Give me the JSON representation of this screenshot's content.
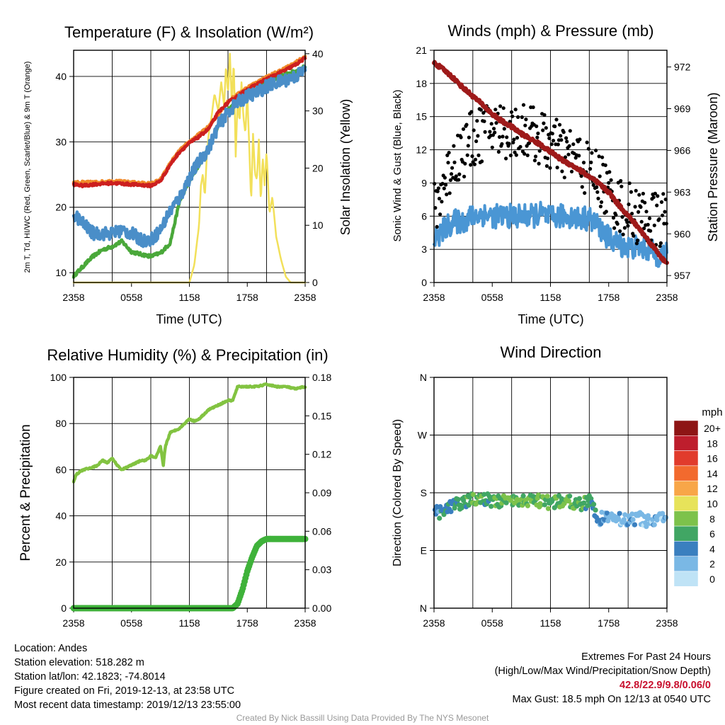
{
  "colors": {
    "temp": "#cc1f1f",
    "temp9m": "#f08a2a",
    "dewpoint": "#4aa83a",
    "windchill": "#4a8ec8",
    "insolation": "#f2e05a",
    "wind": "#4a96d4",
    "gust": "#000000",
    "pressure": "#9e1a1a",
    "rh": "#82c341",
    "precip": "#3fb23a",
    "grid": "#000000"
  },
  "x_ticks": [
    "2358",
    "0558",
    "1158",
    "1758",
    "2358"
  ],
  "footer": {
    "location": "Location: Andes",
    "elevation": "Station elevation: 518.282 m",
    "latlon": "Station lat/lon: 42.1823; -74.8014",
    "created": "Figure created on Fri, 2019-12-13, at 23:58 UTC",
    "recent": "Most recent data timestamp: 2019/12/13 23:55:00",
    "extremes_title": "Extremes For Past 24 Hours",
    "extremes_subtitle": "(High/Low/Max Wind/Precipitation/Snow Depth)",
    "extremes_values": "42.8/22.9/9.8/0.06/0",
    "max_gust": "Max Gust: 18.5 mph On 12/13 at 0540 UTC",
    "credit": "Created By Nick Bassill Using Data Provided By The NYS Mesonet"
  },
  "chart_data": [
    {
      "id": "temp",
      "type": "line",
      "title": "Temperature (F) & Insolation (W/m²)",
      "xlabel": "Time (UTC)",
      "ylabel": "2m T, Td, HI/WC (Red, Green, Scarlet/Blue) & 9m T (Orange)",
      "y2label": "Solar Insolation (Yellow)",
      "x_hours": [
        0,
        24
      ],
      "ylim": [
        8.5,
        44
      ],
      "y2lim": [
        0,
        40.6
      ],
      "yticks": [
        10,
        20,
        30,
        40
      ],
      "y2ticks": [
        0,
        10,
        20,
        30,
        40
      ],
      "grid": true,
      "series": [
        {
          "name": "2m T",
          "axis": "left",
          "color": "#cc1f1f",
          "jitter": 0.2,
          "x": [
            0,
            1,
            2,
            3,
            4,
            5,
            6,
            7,
            8,
            9,
            10,
            11,
            12,
            13,
            14,
            15,
            16,
            17,
            18,
            19,
            20,
            21,
            22,
            23,
            24
          ],
          "y": [
            23.5,
            23.3,
            23.5,
            23.6,
            23.7,
            23.6,
            23.5,
            23.4,
            23.3,
            24.0,
            26.5,
            28.5,
            29.8,
            30.8,
            32.0,
            34.5,
            36.0,
            37.0,
            38.0,
            38.8,
            39.6,
            40.3,
            41.0,
            41.8,
            42.8
          ]
        },
        {
          "name": "9m T",
          "axis": "left",
          "color": "#f08a2a",
          "jitter": 0.2,
          "x": [
            0,
            2,
            4,
            6,
            8,
            9,
            10,
            11,
            12,
            14,
            16,
            18,
            20,
            22,
            24
          ],
          "y": [
            23.8,
            23.8,
            24.0,
            23.8,
            23.6,
            24.2,
            26.7,
            28.7,
            30.0,
            32.3,
            36.2,
            38.3,
            39.9,
            41.3,
            43.0
          ]
        },
        {
          "name": "Dewpoint",
          "axis": "left",
          "color": "#4aa83a",
          "jitter": 0.25,
          "x": [
            0,
            1,
            2,
            3,
            4,
            5,
            6,
            7,
            8,
            9,
            10,
            11,
            12,
            13,
            14,
            15,
            16,
            17,
            18,
            19,
            20,
            21,
            22,
            23,
            24
          ],
          "y": [
            9.5,
            11.0,
            12.5,
            13.5,
            14.0,
            14.8,
            13.2,
            12.8,
            12.5,
            13.0,
            14.5,
            21.0,
            24.0,
            26.5,
            29.0,
            32.5,
            35.0,
            36.0,
            37.0,
            38.0,
            39.0,
            39.8,
            40.3,
            40.8,
            41.5
          ]
        },
        {
          "name": "Wind Chill",
          "axis": "left",
          "color": "#4a8ec8",
          "jitter": 1.0,
          "x": [
            0,
            1,
            2,
            3,
            4,
            5,
            6,
            7,
            8,
            9,
            10,
            11,
            12,
            13,
            14,
            15,
            16,
            17,
            18,
            19,
            20,
            21,
            22,
            23,
            24
          ],
          "y": [
            19.0,
            17.5,
            16.0,
            16.0,
            16.0,
            16.5,
            16.0,
            15.0,
            15.0,
            16.5,
            19.5,
            21.5,
            24.5,
            27.0,
            29.0,
            32.5,
            34.5,
            36.0,
            37.0,
            37.5,
            38.5,
            39.0,
            39.5,
            40.0,
            41.0
          ]
        },
        {
          "name": "Insolation",
          "axis": "right",
          "color": "#f2e05a",
          "jitter": 0,
          "x": [
            0,
            12.0,
            12.5,
            13.0,
            13.2,
            13.4,
            13.6,
            13.8,
            14.0,
            14.3,
            14.6,
            15.0,
            15.3,
            15.6,
            15.8,
            16.0,
            16.2,
            16.4,
            16.6,
            16.8,
            17.0,
            17.2,
            17.4,
            17.6,
            17.8,
            18.0,
            18.2,
            18.4,
            18.6,
            18.8,
            19.0,
            19.2,
            19.4,
            19.6,
            19.8,
            20.0,
            20.3,
            20.6,
            21.0,
            21.5,
            22.0,
            22.5,
            23.0,
            24.0
          ],
          "y": [
            0,
            0,
            3,
            10,
            17,
            19,
            15,
            22,
            26,
            29,
            33,
            30,
            35,
            31,
            38,
            33,
            40,
            31,
            39,
            22,
            32,
            28,
            35,
            29,
            26,
            33,
            24,
            14,
            26,
            19,
            18,
            25,
            14,
            22,
            17,
            23,
            12,
            15,
            8,
            4,
            1,
            0,
            0,
            0
          ]
        }
      ]
    },
    {
      "id": "winds",
      "type": "line",
      "title": "Winds (mph) & Pressure (mb)",
      "xlabel": "Time (UTC)",
      "ylabel": "Sonic Wind & Gust (Blue, Black)",
      "y2label": "Station Pressure (Maroon)",
      "x_hours": [
        0,
        24
      ],
      "ylim": [
        0,
        21
      ],
      "y2lim": [
        956.5,
        973.2
      ],
      "yticks": [
        0,
        3,
        6,
        9,
        12,
        15,
        18,
        21
      ],
      "y2ticks": [
        957,
        960,
        963,
        966,
        969,
        972
      ],
      "grid": true,
      "series": [
        {
          "name": "Sonic Wind",
          "axis": "left",
          "color": "#4a96d4",
          "jitter": 1.1,
          "x": [
            0,
            1,
            2,
            3,
            4,
            5,
            6,
            7,
            8,
            9,
            10,
            11,
            12,
            13,
            14,
            15,
            16,
            17,
            18,
            19,
            20,
            21,
            22,
            23,
            24
          ],
          "y": [
            3.8,
            4.8,
            5.5,
            5.5,
            6.0,
            6.2,
            6.0,
            6.0,
            6.0,
            6.0,
            6.0,
            6.2,
            5.8,
            6.0,
            6.0,
            5.8,
            5.8,
            5.0,
            4.0,
            3.5,
            3.2,
            3.2,
            3.0,
            2.5,
            2.5
          ]
        },
        {
          "name": "Gust",
          "axis": "left",
          "color": "#000000",
          "type": "scatter",
          "spread": 2.6,
          "x": [
            0,
            1,
            2,
            3,
            4,
            5,
            6,
            7,
            8,
            9,
            10,
            11,
            12,
            13,
            14,
            15,
            16,
            17,
            18,
            19,
            20,
            21,
            22,
            23,
            24
          ],
          "y": [
            6.5,
            9.0,
            11.0,
            12.0,
            13.0,
            13.5,
            14.0,
            13.8,
            13.5,
            14.0,
            13.5,
            13.0,
            12.5,
            12.0,
            11.5,
            11.0,
            10.0,
            9.5,
            8.0,
            7.0,
            6.5,
            6.0,
            6.0,
            5.5,
            6.0
          ]
        },
        {
          "name": "Pressure",
          "axis": "right",
          "color": "#9e1a1a",
          "jitter": 0.12,
          "x": [
            0,
            1,
            2,
            3,
            4,
            5,
            6,
            7,
            8,
            9,
            10,
            11,
            12,
            13,
            14,
            15,
            16,
            17,
            18,
            19,
            20,
            21,
            22,
            23,
            24
          ],
          "y": [
            972.3,
            971.8,
            971.2,
            970.5,
            969.9,
            969.3,
            968.6,
            968.1,
            967.7,
            967.2,
            966.8,
            966.4,
            965.9,
            965.4,
            965.0,
            964.6,
            964.1,
            963.6,
            963.0,
            962.1,
            961.3,
            960.5,
            959.6,
            958.7,
            957.8
          ]
        }
      ]
    },
    {
      "id": "rh",
      "type": "line",
      "title": "Relative Humidity (%) & Precipitation (in)",
      "xlabel": "",
      "ylabel": "Percent & Precipitation",
      "x_hours": [
        0,
        24
      ],
      "ylim": [
        0,
        100
      ],
      "y2lim": [
        0,
        0.18
      ],
      "yticks": [
        0,
        20,
        40,
        60,
        80,
        100
      ],
      "y2ticks": [
        "0.00",
        "0.03",
        "0.06",
        "0.09",
        "0.12",
        "0.15",
        "0.18"
      ],
      "grid": true,
      "series": [
        {
          "name": "RH",
          "axis": "left",
          "color": "#82c341",
          "jitter": 0.3,
          "x": [
            0,
            0.3,
            1,
            2,
            2.5,
            3,
            3.5,
            4,
            4.5,
            5,
            5.5,
            6,
            6.5,
            7,
            7.5,
            8,
            8.5,
            9,
            9.3,
            9.5,
            10,
            10.5,
            11,
            11.5,
            12,
            12.5,
            13,
            13.5,
            14,
            14.5,
            15,
            15.5,
            16,
            16.5,
            17,
            17.5,
            18,
            19,
            20,
            21,
            22,
            23,
            24
          ],
          "y": [
            55,
            58,
            60,
            61,
            62,
            64,
            63,
            65,
            62,
            60,
            61,
            62,
            63,
            64,
            64,
            66,
            65,
            70,
            62,
            70,
            76,
            77,
            78,
            80,
            82,
            81,
            82,
            84,
            86,
            87,
            88,
            89,
            90,
            90,
            96,
            96,
            96,
            96,
            97,
            96,
            96,
            95,
            96
          ]
        },
        {
          "name": "Precip",
          "axis": "left",
          "color": "#3fb23a",
          "type": "thick",
          "x": [
            0,
            16,
            16.5,
            17.0,
            17.5,
            18.0,
            18.5,
            19.0,
            19.5,
            20,
            24
          ],
          "y": [
            0,
            0,
            0,
            2,
            8,
            16,
            22,
            27,
            29,
            30,
            30
          ]
        }
      ]
    },
    {
      "id": "dir",
      "type": "scatter",
      "title": "Wind Direction",
      "xlabel": "",
      "ylabel": "Direction (Colored By Speed)",
      "x_hours": [
        0,
        24
      ],
      "ylim": [
        0,
        360
      ],
      "yticks": [
        "N",
        "E",
        "S",
        "W",
        "N"
      ],
      "ytick_values": [
        0,
        90,
        180,
        270,
        360
      ],
      "grid": true,
      "series": [
        {
          "name": "Direction",
          "type": "scatter",
          "spread": 10,
          "x": [
            0,
            1,
            2,
            3,
            4,
            5,
            6,
            7,
            8,
            9,
            10,
            11,
            12,
            13,
            14,
            15,
            16,
            17,
            18,
            19,
            20,
            21,
            22,
            23,
            24
          ],
          "y": [
            150,
            150,
            160,
            165,
            170,
            170,
            168,
            166,
            165,
            170,
            168,
            166,
            165,
            167,
            168,
            162,
            166,
            140,
            140,
            140,
            138,
            140,
            137,
            140,
            140
          ],
          "speed": [
            4,
            4,
            5,
            6,
            7,
            6,
            6,
            7,
            7,
            8,
            7,
            7,
            6,
            7,
            7,
            6,
            6,
            3,
            2,
            2,
            2,
            2,
            2,
            2,
            2
          ]
        }
      ],
      "legend": {
        "title": "mph",
        "labels": [
          "20+",
          "18",
          "16",
          "14",
          "12",
          "10",
          "8",
          "6",
          "4",
          "2",
          "0"
        ],
        "colors": [
          "#8e1515",
          "#be1e2d",
          "#e13b2c",
          "#f26a2e",
          "#f8a648",
          "#e7e35a",
          "#7dc24b",
          "#41a664",
          "#3a7fbf",
          "#7ab8e5",
          "#bfe3f6"
        ]
      }
    }
  ]
}
